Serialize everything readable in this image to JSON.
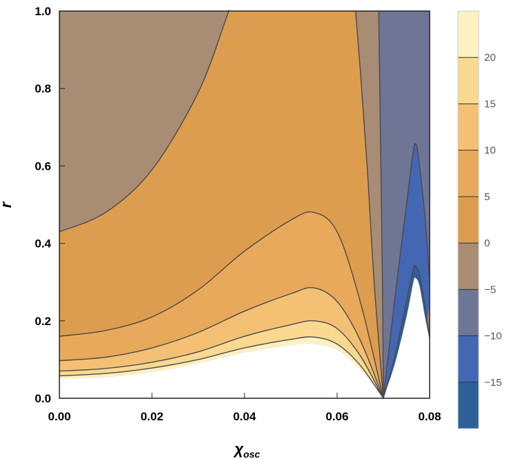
{
  "chart_data": {
    "type": "heatmap",
    "subtype": "contour",
    "title": "",
    "xlabel": "χ",
    "xlabel_subscript": "osc",
    "ylabel": "r",
    "xlim": [
      0,
      0.08
    ],
    "ylim": [
      0,
      1
    ],
    "xticks": [
      0,
      0.02,
      0.04,
      0.06,
      0.08
    ],
    "xtick_labels": [
      "0.00",
      "0.02",
      "0.04",
      "0.06",
      "0.08"
    ],
    "yticks": [
      0,
      0.2,
      0.4,
      0.6,
      0.8,
      1.0
    ],
    "ytick_labels": [
      "0.0",
      "0.2",
      "0.4",
      "0.6",
      "0.8",
      "1.0"
    ],
    "colorbar": {
      "range": [
        -20,
        25
      ],
      "ticks": [
        -15,
        -10,
        -5,
        0,
        5,
        10,
        15,
        20
      ],
      "tick_labels": [
        "−15",
        "−10",
        "−5",
        "0",
        "5",
        "10",
        "15",
        "20"
      ],
      "bands": [
        {
          "from": -20,
          "to": -15,
          "color": "#2f5f99"
        },
        {
          "from": -15,
          "to": -10,
          "color": "#4467b4"
        },
        {
          "from": -10,
          "to": -5,
          "color": "#6e7595"
        },
        {
          "from": -5,
          "to": 0,
          "color": "#a88c74"
        },
        {
          "from": 0,
          "to": 5,
          "color": "#dd9d4f"
        },
        {
          "from": 5,
          "to": 10,
          "color": "#e9a95a"
        },
        {
          "from": 10,
          "to": 15,
          "color": "#f3c074"
        },
        {
          "from": 15,
          "to": 20,
          "color": "#f9d890"
        },
        {
          "from": 20,
          "to": 25,
          "color": "#fdf0c2"
        }
      ]
    },
    "contour_levels": [
      {
        "level": 0,
        "points": [
          [
            0,
            0.43
          ],
          [
            0.01,
            0.48
          ],
          [
            0.02,
            0.59
          ],
          [
            0.03,
            0.79
          ],
          [
            0.036,
            0.98
          ],
          [
            0.0365,
            1.0
          ]
        ]
      },
      {
        "level": 5,
        "points": [
          [
            0,
            0.16
          ],
          [
            0.01,
            0.175
          ],
          [
            0.02,
            0.21
          ],
          [
            0.03,
            0.28
          ],
          [
            0.04,
            0.38
          ],
          [
            0.05,
            0.46
          ],
          [
            0.055,
            0.48
          ],
          [
            0.06,
            0.43
          ],
          [
            0.065,
            0.25
          ],
          [
            0.07,
            0.0
          ]
        ]
      },
      {
        "level": 10,
        "points": [
          [
            0,
            0.097
          ],
          [
            0.01,
            0.106
          ],
          [
            0.02,
            0.13
          ],
          [
            0.03,
            0.17
          ],
          [
            0.04,
            0.225
          ],
          [
            0.05,
            0.27
          ],
          [
            0.055,
            0.285
          ],
          [
            0.06,
            0.25
          ],
          [
            0.065,
            0.15
          ],
          [
            0.07,
            0.0
          ]
        ]
      },
      {
        "level": 15,
        "points": [
          [
            0,
            0.07
          ],
          [
            0.01,
            0.077
          ],
          [
            0.02,
            0.093
          ],
          [
            0.03,
            0.12
          ],
          [
            0.04,
            0.16
          ],
          [
            0.05,
            0.19
          ],
          [
            0.055,
            0.2
          ],
          [
            0.06,
            0.18
          ],
          [
            0.065,
            0.11
          ],
          [
            0.07,
            0.0
          ]
        ]
      },
      {
        "level": 20,
        "points": [
          [
            0,
            0.058
          ],
          [
            0.01,
            0.064
          ],
          [
            0.02,
            0.078
          ],
          [
            0.03,
            0.1
          ],
          [
            0.04,
            0.13
          ],
          [
            0.05,
            0.152
          ],
          [
            0.055,
            0.158
          ],
          [
            0.06,
            0.14
          ],
          [
            0.065,
            0.085
          ],
          [
            0.07,
            0.0
          ]
        ]
      },
      {
        "level": 0,
        "points": [
          [
            0.07,
            0.0
          ],
          [
            0.068,
            0.3
          ],
          [
            0.0665,
            0.6
          ],
          [
            0.065,
            0.85
          ],
          [
            0.064,
            1.0
          ]
        ]
      },
      {
        "level": -5,
        "points": [
          [
            0.07,
            0.0
          ],
          [
            0.0698,
            0.3
          ],
          [
            0.0694,
            0.65
          ],
          [
            0.069,
            1.0
          ]
        ]
      },
      {
        "level": -10,
        "points": [
          [
            0.07,
            0.0
          ],
          [
            0.0725,
            0.26
          ],
          [
            0.075,
            0.5
          ],
          [
            0.0765,
            0.64
          ],
          [
            0.077,
            0.655
          ],
          [
            0.0775,
            0.63
          ],
          [
            0.079,
            0.47
          ],
          [
            0.08,
            0.3
          ]
        ]
      },
      {
        "level": -15,
        "points": [
          [
            0.07,
            0.0
          ],
          [
            0.0725,
            0.11
          ],
          [
            0.075,
            0.25
          ],
          [
            0.0765,
            0.335
          ],
          [
            0.077,
            0.34
          ],
          [
            0.0778,
            0.32
          ],
          [
            0.079,
            0.24
          ],
          [
            0.08,
            0.155
          ]
        ]
      }
    ],
    "undefined_region_boundary": [
      [
        0,
        0.05
      ],
      [
        0.01,
        0.055
      ],
      [
        0.02,
        0.068
      ],
      [
        0.03,
        0.09
      ],
      [
        0.04,
        0.118
      ],
      [
        0.05,
        0.137
      ],
      [
        0.055,
        0.14
      ],
      [
        0.06,
        0.125
      ],
      [
        0.065,
        0.075
      ],
      [
        0.07,
        0.0
      ]
    ],
    "undefined_region_boundary_2": [
      [
        0.07,
        0.0
      ],
      [
        0.0725,
        0.09
      ],
      [
        0.075,
        0.21
      ],
      [
        0.0765,
        0.3
      ],
      [
        0.077,
        0.31
      ],
      [
        0.0778,
        0.29
      ],
      [
        0.079,
        0.21
      ],
      [
        0.08,
        0.15
      ]
    ]
  }
}
